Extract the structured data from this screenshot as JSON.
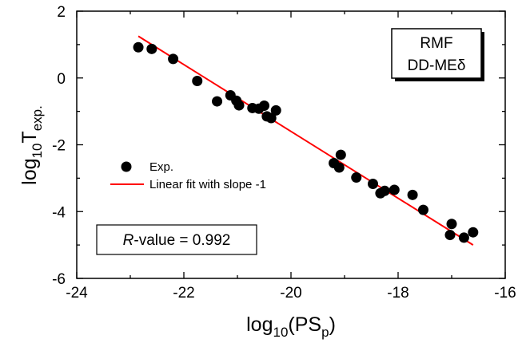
{
  "chart_data": {
    "type": "scatter",
    "xlabel": {
      "base": "log",
      "sub": "10",
      "body": "(PS",
      "sub2": "p",
      "close": ")"
    },
    "ylabel": {
      "base": "log",
      "sub": "10",
      "body": "T",
      "sub2": "exp."
    },
    "xlim": [
      -24,
      -16
    ],
    "ylim": [
      -6,
      2
    ],
    "x_ticks": [
      "-24",
      "-22",
      "-20",
      "-18",
      "-16"
    ],
    "y_ticks": [
      "2",
      "0",
      "-2",
      "-4",
      "-6"
    ],
    "series": [
      {
        "name": "Exp.",
        "kind": "points",
        "color": "#000000",
        "points": [
          [
            -22.85,
            0.92
          ],
          [
            -22.6,
            0.87
          ],
          [
            -22.2,
            0.57
          ],
          [
            -21.75,
            -0.09
          ],
          [
            -21.38,
            -0.7
          ],
          [
            -21.13,
            -0.52
          ],
          [
            -21.02,
            -0.68
          ],
          [
            -20.97,
            -0.82
          ],
          [
            -20.72,
            -0.9
          ],
          [
            -20.6,
            -0.92
          ],
          [
            -20.5,
            -0.83
          ],
          [
            -20.45,
            -1.15
          ],
          [
            -20.37,
            -1.2
          ],
          [
            -20.28,
            -0.97
          ],
          [
            -19.2,
            -2.55
          ],
          [
            -19.1,
            -2.68
          ],
          [
            -19.07,
            -2.3
          ],
          [
            -18.78,
            -2.98
          ],
          [
            -18.47,
            -3.17
          ],
          [
            -18.33,
            -3.45
          ],
          [
            -18.25,
            -3.38
          ],
          [
            -18.07,
            -3.35
          ],
          [
            -17.73,
            -3.5
          ],
          [
            -17.53,
            -3.95
          ],
          [
            -17.03,
            -4.7
          ],
          [
            -17.0,
            -4.37
          ],
          [
            -16.77,
            -4.78
          ],
          [
            -16.6,
            -4.62
          ]
        ]
      },
      {
        "name": "Linear fit with slope -1",
        "kind": "line",
        "color": "#ff0000",
        "points": [
          [
            -22.85,
            1.25
          ],
          [
            -16.6,
            -5.0
          ]
        ]
      }
    ],
    "legend_position": "middle-left",
    "annotations": {
      "model_line1": "RMF",
      "model_line2": "DD-MEδ",
      "r_italic": "R",
      "r_rest": "-value = 0.992"
    },
    "grid": false
  }
}
